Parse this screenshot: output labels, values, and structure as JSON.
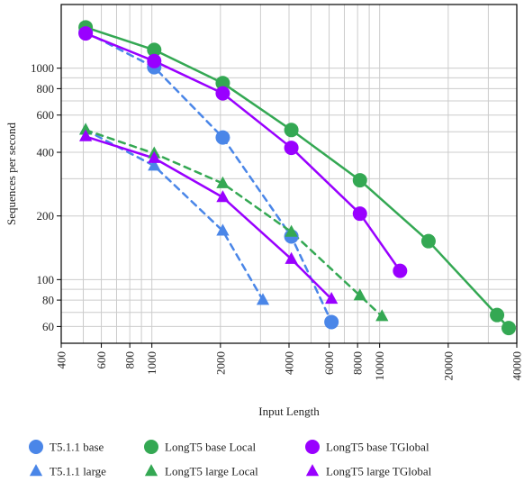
{
  "chart_data": {
    "type": "line",
    "title": "",
    "xlabel": "Input Length",
    "ylabel": "Sequences per second",
    "x_scale": "log",
    "y_scale": "log",
    "xlim": [
      400,
      40000
    ],
    "ylim": [
      50,
      2000
    ],
    "x_ticks": [
      400,
      600,
      800,
      1000,
      2000,
      4000,
      6000,
      8000,
      10000,
      20000,
      40000
    ],
    "x_tick_labels": [
      "400",
      "600",
      "800",
      "1000",
      "2000",
      "4000",
      "6000",
      "8000",
      "10000",
      "20000",
      "40000"
    ],
    "y_ticks": [
      60,
      80,
      100,
      200,
      400,
      600,
      800,
      1000
    ],
    "y_tick_labels": [
      "60",
      "80",
      "100",
      "200",
      "400",
      "600",
      "800",
      "1000"
    ],
    "grid": true,
    "legend_position": "bottom",
    "series": [
      {
        "name": "T5.1.1 base",
        "color": "#4a86e8",
        "marker": "circle",
        "line": "dashed",
        "x": [
          512,
          1024,
          2048,
          4096,
          6144
        ],
        "y": [
          1480,
          1010,
          470,
          160,
          63
        ]
      },
      {
        "name": "LongT5 base Local",
        "color": "#34a853",
        "marker": "circle",
        "line": "solid",
        "x": [
          512,
          1024,
          2048,
          4096,
          8192,
          16384,
          32768,
          36864
        ],
        "y": [
          1560,
          1220,
          850,
          510,
          295,
          152,
          68,
          59
        ]
      },
      {
        "name": "LongT5 base TGlobal",
        "color": "#9900ff",
        "marker": "circle",
        "line": "solid",
        "x": [
          512,
          1024,
          2048,
          4096,
          8192,
          12288
        ],
        "y": [
          1460,
          1080,
          760,
          420,
          205,
          110
        ]
      },
      {
        "name": "T5.1.1 large",
        "color": "#4a86e8",
        "marker": "triangle",
        "line": "dashed",
        "x": [
          512,
          1024,
          2048,
          3072
        ],
        "y": [
          510,
          345,
          170,
          80
        ]
      },
      {
        "name": "LongT5 large Local",
        "color": "#34a853",
        "marker": "triangle",
        "line": "dashed",
        "x": [
          512,
          1024,
          2048,
          4096,
          8192,
          10240
        ],
        "y": [
          510,
          395,
          285,
          168,
          84,
          67
        ]
      },
      {
        "name": "LongT5 large TGlobal",
        "color": "#9900ff",
        "marker": "triangle",
        "line": "solid",
        "x": [
          512,
          1024,
          2048,
          4096,
          6144
        ],
        "y": [
          475,
          375,
          245,
          125,
          81
        ]
      }
    ]
  }
}
